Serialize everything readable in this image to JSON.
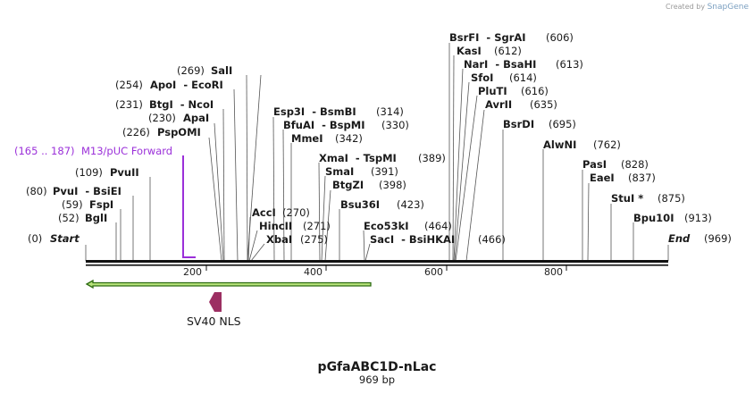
{
  "watermark": {
    "created_by": "Created by",
    "brand": "SnapGene"
  },
  "plasmid": {
    "name": "pGfaABC1D-nLac",
    "length_label": "969 bp"
  },
  "ends": {
    "start": {
      "pos": "(0)",
      "label": "Start"
    },
    "end": {
      "label": "End",
      "pos": "(969)"
    }
  },
  "ticks": [
    "200",
    "400",
    "600",
    "800"
  ],
  "sites": [
    {
      "name": "BglI",
      "pos": "(52)"
    },
    {
      "name": "FspI",
      "pos": "(59)"
    },
    {
      "name": "PvuI  - BsiEI",
      "pos": "(80)"
    },
    {
      "name": "PvuII",
      "pos": "(109)"
    },
    {
      "name": "PspOMI",
      "pos": "(226)"
    },
    {
      "name": "ApaI",
      "pos": "(230)"
    },
    {
      "name": "BtgI  - NcoI",
      "pos": "(231)"
    },
    {
      "name": "ApoI  - EcoRI",
      "pos": "(254)"
    },
    {
      "name": "SalI",
      "pos": "(269)"
    },
    {
      "name": "AccI",
      "pos": "(270)"
    },
    {
      "name": "HincII",
      "pos": "(271)"
    },
    {
      "name": "XbaI",
      "pos": "(275)"
    },
    {
      "name": "Esp3I  - BsmBI",
      "pos": "(314)"
    },
    {
      "name": "BfuAI  - BspMI",
      "pos": "(330)"
    },
    {
      "name": "MmeI",
      "pos": "(342)"
    },
    {
      "name": "XmaI  - TspMI",
      "pos": "(389)"
    },
    {
      "name": "SmaI",
      "pos": "(391)"
    },
    {
      "name": "BtgZI",
      "pos": "(398)"
    },
    {
      "name": "Bsu36I",
      "pos": "(423)"
    },
    {
      "name": "Eco53kI",
      "pos": "(464)"
    },
    {
      "name": "SacI  - BsiHKAI",
      "pos": "(466)"
    },
    {
      "name": "BsrFI  - SgrAI",
      "pos": "(606)"
    },
    {
      "name": "KasI",
      "pos": "(612)"
    },
    {
      "name": "NarI  - BsaHI",
      "pos": "(613)"
    },
    {
      "name": "SfoI",
      "pos": "(614)"
    },
    {
      "name": "PluTI",
      "pos": "(616)"
    },
    {
      "name": "AvrII",
      "pos": "(635)"
    },
    {
      "name": "BsrDI",
      "pos": "(695)"
    },
    {
      "name": "AlwNI",
      "pos": "(762)"
    },
    {
      "name": "PasI",
      "pos": "(828)"
    },
    {
      "name": "EaeI",
      "pos": "(837)"
    },
    {
      "name": "StuI *",
      "pos": "(875)"
    },
    {
      "name": "Bpu10I",
      "pos": "(913)"
    }
  ],
  "primer": {
    "range": "(165 .. 187)",
    "name": "M13/pUC Forward"
  },
  "features": {
    "nls": "SV40 NLS"
  },
  "colors": {
    "primer": "#9b30d9",
    "orf_fill": "#b7e27a",
    "orf_stroke": "#2d6b12",
    "nls": "#9c2f62",
    "backbone": "#111111"
  }
}
